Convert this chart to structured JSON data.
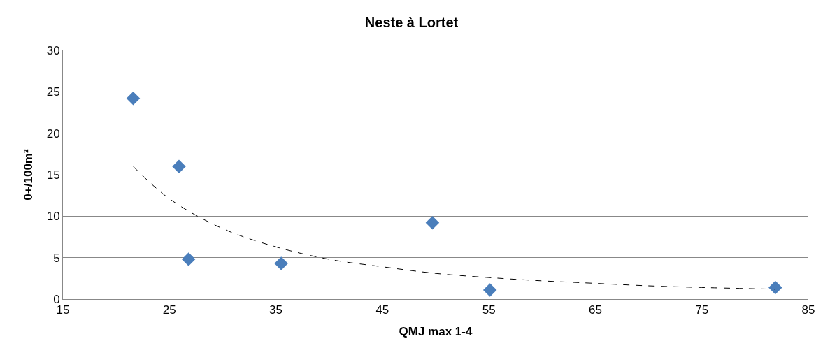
{
  "chart_data": {
    "type": "scatter",
    "title": "Neste à Lortet",
    "xlabel": "QMJ max 1-4",
    "ylabel": "0+/100m²",
    "xlim": [
      15,
      85
    ],
    "xticks": [
      15,
      25,
      35,
      45,
      55,
      65,
      75,
      85
    ],
    "ylim": [
      0,
      30
    ],
    "yticks": [
      0,
      5,
      10,
      15,
      20,
      25,
      30
    ],
    "grid": "y",
    "marker": "diamond",
    "series": [
      {
        "color": "#4a7ebb",
        "x": [
          21.6,
          25.9,
          26.8,
          35.5,
          49.7,
          55.1,
          81.9
        ],
        "values": [
          24.2,
          16.0,
          4.8,
          4.3,
          9.2,
          1.1,
          1.4
        ]
      },
      {
        "type": "line",
        "color": "#000000",
        "line_style": "dashed",
        "marker": "none",
        "x": [
          21.6,
          25,
          30,
          35,
          40,
          45,
          50,
          55,
          60,
          65,
          70,
          75,
          81.9
        ],
        "values": [
          16.0,
          12.1,
          8.5,
          6.3,
          4.8,
          3.9,
          3.1,
          2.6,
          2.2,
          1.9,
          1.6,
          1.4,
          1.2
        ]
      }
    ]
  }
}
